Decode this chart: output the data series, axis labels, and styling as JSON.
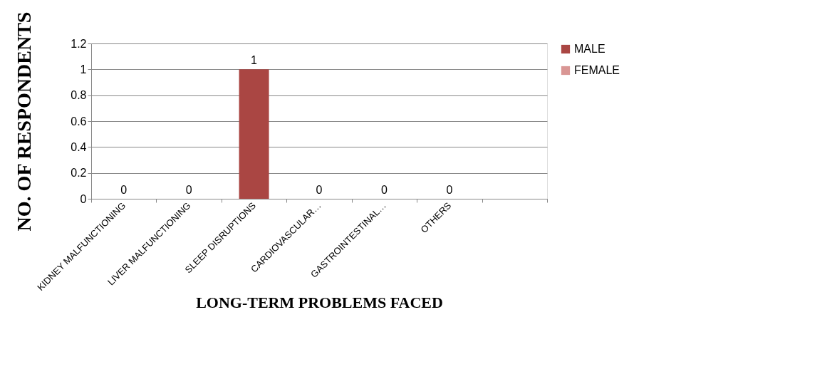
{
  "chart_data": {
    "type": "bar",
    "xlabel": "LONG-TERM PROBLEMS FACED",
    "ylabel": "NO. OF RESPONDENTS",
    "categories": [
      "KIDNEY MALFUNCTIONING",
      "LIVER MALFUNCTIONING",
      "SLEEP DISRUPTIONS",
      "CARDIOVASCULAR…",
      "GASTROINTESTINAL…",
      "OTHERS",
      null
    ],
    "series": [
      {
        "name": "MALE",
        "color": "#aa4643",
        "values": [
          0,
          0,
          1,
          0,
          0,
          0,
          null
        ],
        "value_labels": [
          "0",
          "0",
          "1",
          "0",
          "0",
          "0",
          null
        ]
      },
      {
        "name": "FEMALE",
        "color": "#d99694",
        "values": [
          null,
          null,
          null,
          null,
          null,
          null,
          null
        ]
      }
    ],
    "ylim": [
      0,
      1.2
    ],
    "yticks": [
      0,
      0.2,
      0.4,
      0.6,
      0.8,
      1,
      1.2
    ],
    "grid": "y",
    "legend": "right"
  }
}
